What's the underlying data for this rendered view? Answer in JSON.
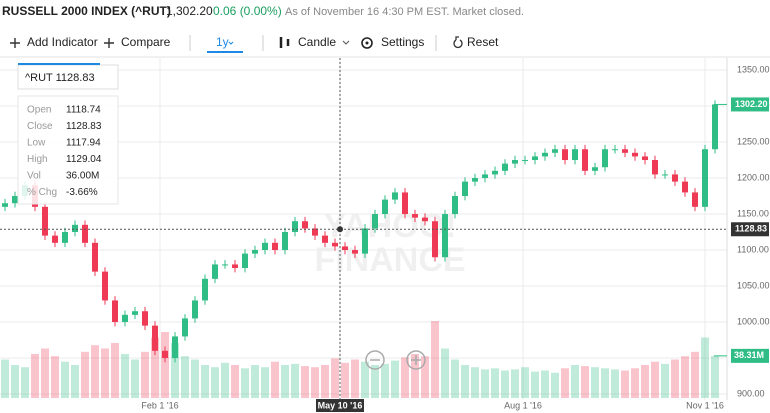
{
  "header": {
    "title": "RUSSELL 2000 INDEX (^RUT)",
    "price": "1,302.20",
    "change": "0.06 (0.00%)",
    "status": "As of November 16 4:30 PM EST. Market closed."
  },
  "toolbar": {
    "add_indicator": "Add Indicator",
    "compare": "Compare",
    "range": "1y",
    "chart_type": "Candle",
    "settings": "Settings",
    "reset": "Reset"
  },
  "tooltip": {
    "title": "^RUT 1128.83",
    "rows": [
      [
        "Open",
        "1118.74"
      ],
      [
        "Close",
        "1128.83"
      ],
      [
        "Low",
        "1117.94"
      ],
      [
        "High",
        "1129.04"
      ],
      [
        "Vol",
        "36.00M"
      ],
      [
        "% Chg",
        "-3.66%"
      ]
    ]
  },
  "watermark": [
    "YAHOO!",
    "FINANCE"
  ],
  "chart_data": {
    "type": "candlestick",
    "up_color": "#2fbd85",
    "down_color": "#ef3a55",
    "open": [
      1160,
      1165,
      1175,
      1190,
      1160,
      1120,
      1110,
      1125,
      1135,
      1110,
      1070,
      1030,
      1000,
      1010,
      1015,
      995,
      960,
      950,
      980,
      1005,
      1030,
      1060,
      1080,
      1080,
      1075,
      1095,
      1100,
      1110,
      1100,
      1125,
      1140,
      1130,
      1120,
      1110,
      1105,
      1100,
      1095,
      1130,
      1150,
      1170,
      1180,
      1150,
      1145,
      1140,
      1090,
      1150,
      1175,
      1195,
      1200,
      1205,
      1210,
      1220,
      1225,
      1225,
      1230,
      1235,
      1240,
      1225,
      1240,
      1210,
      1215,
      1240,
      1240,
      1235,
      1230,
      1225,
      1205,
      1205,
      1195,
      1180,
      1160,
      1240
    ],
    "close": [
      1165,
      1175,
      1190,
      1160,
      1120,
      1110,
      1125,
      1135,
      1110,
      1070,
      1030,
      1000,
      1010,
      1015,
      995,
      960,
      950,
      980,
      1005,
      1030,
      1060,
      1080,
      1080,
      1075,
      1095,
      1100,
      1110,
      1100,
      1125,
      1140,
      1130,
      1120,
      1110,
      1105,
      1100,
      1095,
      1130,
      1150,
      1170,
      1180,
      1150,
      1145,
      1140,
      1090,
      1150,
      1175,
      1195,
      1200,
      1205,
      1210,
      1220,
      1225,
      1225,
      1230,
      1235,
      1240,
      1225,
      1240,
      1210,
      1215,
      1240,
      1240,
      1235,
      1230,
      1225,
      1205,
      1205,
      1195,
      1180,
      1160,
      1240,
      1302.2
    ],
    "high": [
      1171,
      1181,
      1196,
      1196,
      1166,
      1126,
      1131,
      1141,
      1141,
      1116,
      1076,
      1036,
      1016,
      1021,
      1021,
      1001,
      966,
      986,
      1011,
      1036,
      1066,
      1086,
      1086,
      1086,
      1101,
      1106,
      1116,
      1116,
      1131,
      1146,
      1146,
      1136,
      1126,
      1116,
      1111,
      1106,
      1136,
      1156,
      1176,
      1186,
      1186,
      1156,
      1151,
      1146,
      1156,
      1181,
      1201,
      1206,
      1211,
      1216,
      1226,
      1231,
      1231,
      1236,
      1241,
      1246,
      1246,
      1246,
      1246,
      1221,
      1246,
      1246,
      1246,
      1241,
      1236,
      1231,
      1211,
      1211,
      1201,
      1186,
      1246,
      1308
    ],
    "low": [
      1154,
      1159,
      1169,
      1154,
      1114,
      1104,
      1104,
      1119,
      1104,
      1064,
      1024,
      994,
      994,
      1004,
      989,
      954,
      944,
      944,
      974,
      999,
      1024,
      1054,
      1074,
      1069,
      1069,
      1089,
      1094,
      1094,
      1094,
      1119,
      1124,
      1114,
      1104,
      1099,
      1094,
      1089,
      1089,
      1124,
      1144,
      1164,
      1144,
      1139,
      1134,
      1084,
      1084,
      1144,
      1169,
      1189,
      1194,
      1199,
      1204,
      1214,
      1219,
      1219,
      1224,
      1229,
      1219,
      1219,
      1204,
      1204,
      1209,
      1234,
      1229,
      1224,
      1219,
      1199,
      1199,
      1189,
      1174,
      1154,
      1154,
      1234
    ],
    "volume": [
      35,
      30,
      28,
      40,
      45,
      38,
      33,
      30,
      42,
      48,
      45,
      50,
      40,
      35,
      42,
      55,
      60,
      50,
      38,
      35,
      30,
      28,
      32,
      30,
      27,
      30,
      28,
      33,
      30,
      31,
      29,
      28,
      30,
      36,
      32,
      35,
      33,
      30,
      31,
      34,
      37,
      40,
      38,
      70,
      45,
      35,
      30,
      28,
      26,
      27,
      25,
      26,
      28,
      24,
      25,
      23,
      27,
      30,
      29,
      28,
      27,
      26,
      25,
      27,
      30,
      33,
      31,
      35,
      38,
      42,
      55,
      38.31
    ],
    "xlim": [
      -0.5,
      71.5
    ],
    "xticks": [
      {
        "value": 15.5,
        "label": "Feb 1 '16"
      },
      {
        "value": 33.5,
        "label": "May 10 '16"
      },
      {
        "value": 51.8,
        "label": "Aug 1 '16"
      },
      {
        "value": 70,
        "label": "Nov 1 '16"
      }
    ],
    "ylim": [
      891.7,
      1366.7
    ],
    "yticks": [
      {
        "value": 900,
        "label": "900.00"
      },
      {
        "value": 950,
        "label": "950.00"
      },
      {
        "value": 1000,
        "label": "1000.00"
      },
      {
        "value": 1050,
        "label": "1050.00"
      },
      {
        "value": 1100,
        "label": "1100.00"
      },
      {
        "value": 1150,
        "label": "1150.00"
      },
      {
        "value": 1200,
        "label": "1200.00"
      },
      {
        "value": 1250,
        "label": "1250.00"
      },
      {
        "value": 1300,
        "label": "1300.00"
      },
      {
        "value": 1350,
        "label": "1350.00"
      }
    ],
    "y2lim": [
      0,
      100
    ],
    "grid": true,
    "price_marker": {
      "value": 1302.2,
      "label": "1302.20"
    },
    "crosshair": {
      "x": 33.5,
      "value": 1128.83,
      "label": "1128.83"
    },
    "volume_marker": {
      "value": 38.31,
      "label": "38.31M"
    }
  }
}
